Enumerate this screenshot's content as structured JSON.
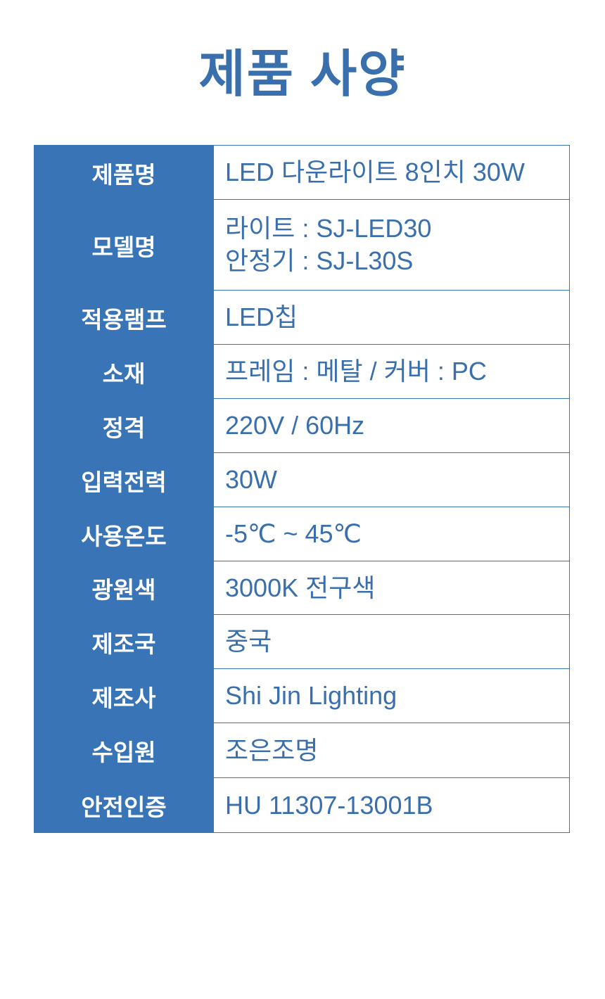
{
  "title": "제품 사양",
  "colors": {
    "accent": "#3874b6",
    "text": "#3a6fad"
  },
  "rows": [
    {
      "label": "제품명",
      "values": [
        "LED 다운라이트 8인치 30W"
      ]
    },
    {
      "label": "모델명",
      "values": [
        "라이트 : SJ-LED30",
        "안정기 : SJ-L30S"
      ]
    },
    {
      "label": "적용램프",
      "values": [
        "LED칩"
      ]
    },
    {
      "label": "소재",
      "values": [
        "프레임 : 메탈 / 커버 : PC"
      ]
    },
    {
      "label": "정격",
      "values": [
        "220V / 60Hz"
      ]
    },
    {
      "label": "입력전력",
      "values": [
        "30W"
      ]
    },
    {
      "label": "사용온도",
      "values": [
        "-5℃ ~ 45℃"
      ]
    },
    {
      "label": "광원색",
      "values": [
        "3000K 전구색"
      ]
    },
    {
      "label": "제조국",
      "values": [
        "중국"
      ]
    },
    {
      "label": "제조사",
      "values": [
        "Shi Jin Lighting"
      ]
    },
    {
      "label": "수입원",
      "values": [
        "조은조명"
      ]
    },
    {
      "label": "안전인증",
      "values": [
        "HU 11307-13001B"
      ]
    }
  ]
}
